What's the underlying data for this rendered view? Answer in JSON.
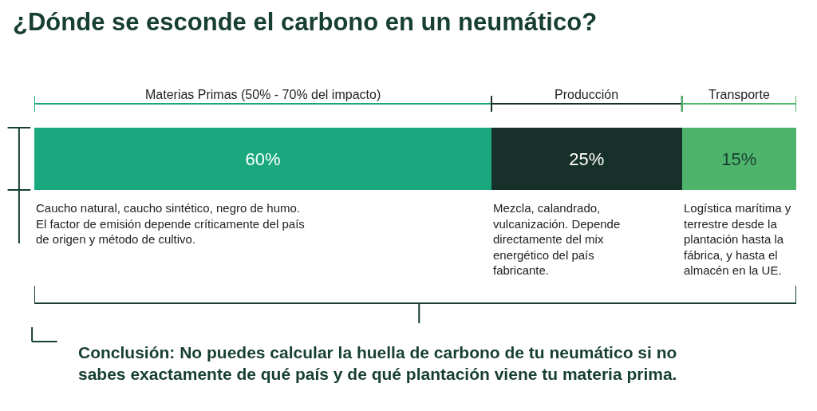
{
  "chart_data": {
    "type": "bar",
    "title": "¿Dónde se esconde el carbono en un neumático?",
    "orientation": "horizontal",
    "stacked": true,
    "categories": [
      null
    ],
    "xlim": [
      0,
      100
    ],
    "legend": "top",
    "series": [
      {
        "name": "Materias Primas (50% - 70% del impacto)",
        "color": "#1aa97f",
        "values": [
          60
        ],
        "value_labels": [
          "60%"
        ]
      },
      {
        "name": "Producción",
        "color": "#17302a",
        "values": [
          25
        ],
        "value_labels": [
          "25%"
        ]
      },
      {
        "name": "Transporte",
        "color": "#4fb46b",
        "values": [
          15
        ],
        "value_labels": [
          "15%"
        ]
      }
    ],
    "annotations": [
      "Caucho natural, caucho sintético, negro de humo.\nEl factor de emisión depende críticamente del país\nde origen y método de cultivo.",
      "Mezcla, calandrado,\nvulcanización. Depende\ndirectamente del mix\nenergético del país\nfabricante.",
      "Logística marítima y\nterrestre desde la\nplantación hasta la\nfábrica, y hasta el\nalmacén en la UE.",
      "Conclusión: No puedes calcular la huella de carbono de tu neumático si no\nsabes exactamente de qué país y de qué plantación viene tu materia prima."
    ]
  }
}
